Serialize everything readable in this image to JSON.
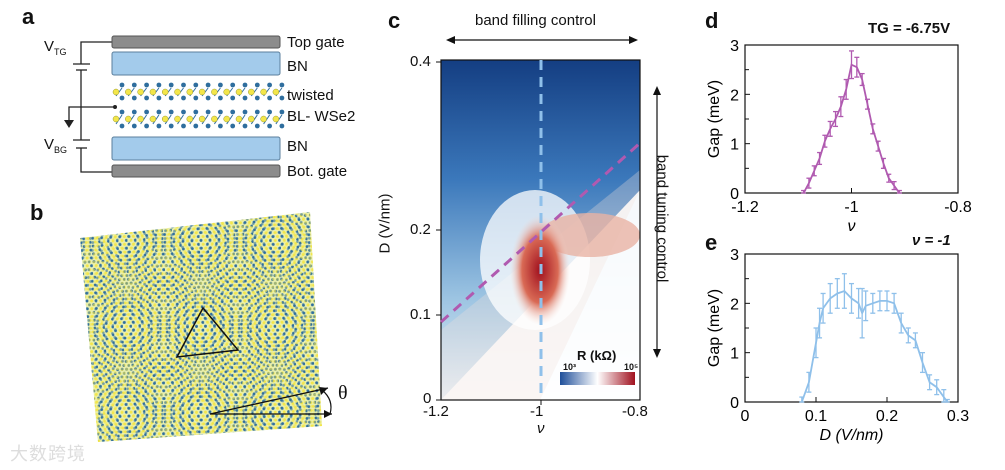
{
  "panels": {
    "a": "a",
    "b": "b",
    "c": "c",
    "d": "d",
    "e": "e"
  },
  "device": {
    "vtg": "V",
    "vtg_sub": "TG",
    "vbg": "V",
    "vbg_sub": "BG",
    "layers": [
      "Top gate",
      "BN",
      "twisted",
      "BL- WSe2",
      "BN",
      "Bot. gate"
    ],
    "colors": {
      "gate": "#8c8c8c",
      "bn": "#a3cbeb",
      "w": "#2f6e9e",
      "se": "#f3e64a"
    }
  },
  "lattice": {
    "angle_label": "θ"
  },
  "c": {
    "top_arrow": "band filling control",
    "right_arrow": "band tuning control",
    "ylabel": "D (V/nm)",
    "xlabel": "ν",
    "xticks": [
      "-1.2",
      "-1",
      "-0.8"
    ],
    "yticks": [
      "0",
      "0.1",
      "0.2",
      "0.4"
    ],
    "colorbar": {
      "label": "R (kΩ)",
      "min": "10³",
      "max": "10⁵"
    }
  },
  "watermark": "大数跨境",
  "chart_data": [
    {
      "type": "line",
      "panel": "d",
      "title": "TG = -6.75V",
      "xlabel": "ν",
      "ylabel": "Gap (meV)",
      "xlim": [
        -1.2,
        -0.8
      ],
      "ylim": [
        0,
        3
      ],
      "xticks": [
        "-1.2",
        "-1",
        "-0.8"
      ],
      "yticks": [
        "0",
        "1",
        "2",
        "3"
      ],
      "color": "#b05ab0",
      "x": [
        -1.09,
        -1.08,
        -1.07,
        -1.06,
        -1.05,
        -1.04,
        -1.03,
        -1.02,
        -1.01,
        -1.0,
        -0.99,
        -0.98,
        -0.97,
        -0.96,
        -0.95,
        -0.94,
        -0.93,
        -0.92,
        -0.91
      ],
      "y": [
        0,
        0.2,
        0.45,
        0.7,
        1.05,
        1.3,
        1.5,
        1.75,
        2.1,
        2.6,
        2.55,
        2.3,
        1.8,
        1.3,
        0.95,
        0.6,
        0.3,
        0.15,
        0
      ],
      "err": [
        0.05,
        0.1,
        0.1,
        0.12,
        0.12,
        0.15,
        0.15,
        0.2,
        0.2,
        0.28,
        0.2,
        0.12,
        0.1,
        0.1,
        0.1,
        0.1,
        0.08,
        0.08,
        0.05
      ]
    },
    {
      "type": "line",
      "panel": "e",
      "title": "ν = -1",
      "xlabel": "D (V/nm)",
      "ylabel": "Gap (meV)",
      "xlim": [
        0,
        0.3
      ],
      "ylim": [
        0,
        3
      ],
      "xticks": [
        "0",
        "0.1",
        "0.2",
        "0.3"
      ],
      "yticks": [
        "0",
        "1",
        "2",
        "3"
      ],
      "color": "#8fc0ea",
      "x": [
        0.08,
        0.09,
        0.1,
        0.105,
        0.11,
        0.12,
        0.13,
        0.14,
        0.15,
        0.16,
        0.165,
        0.17,
        0.18,
        0.19,
        0.2,
        0.21,
        0.22,
        0.23,
        0.24,
        0.25,
        0.26,
        0.27,
        0.28,
        0.285
      ],
      "y": [
        0,
        0.4,
        1.2,
        1.6,
        1.9,
        2.1,
        2.2,
        2.25,
        2.1,
        2.0,
        1.8,
        1.95,
        2.0,
        2.05,
        2.05,
        2.0,
        1.6,
        1.35,
        1.25,
        0.8,
        0.4,
        0.3,
        0.1,
        0
      ],
      "err": [
        0.1,
        0.2,
        0.3,
        0.3,
        0.3,
        0.3,
        0.3,
        0.35,
        0.3,
        0.3,
        0.5,
        0.3,
        0.2,
        0.2,
        0.2,
        0.2,
        0.2,
        0.15,
        0.15,
        0.2,
        0.15,
        0.15,
        0.15,
        0.05
      ]
    }
  ]
}
